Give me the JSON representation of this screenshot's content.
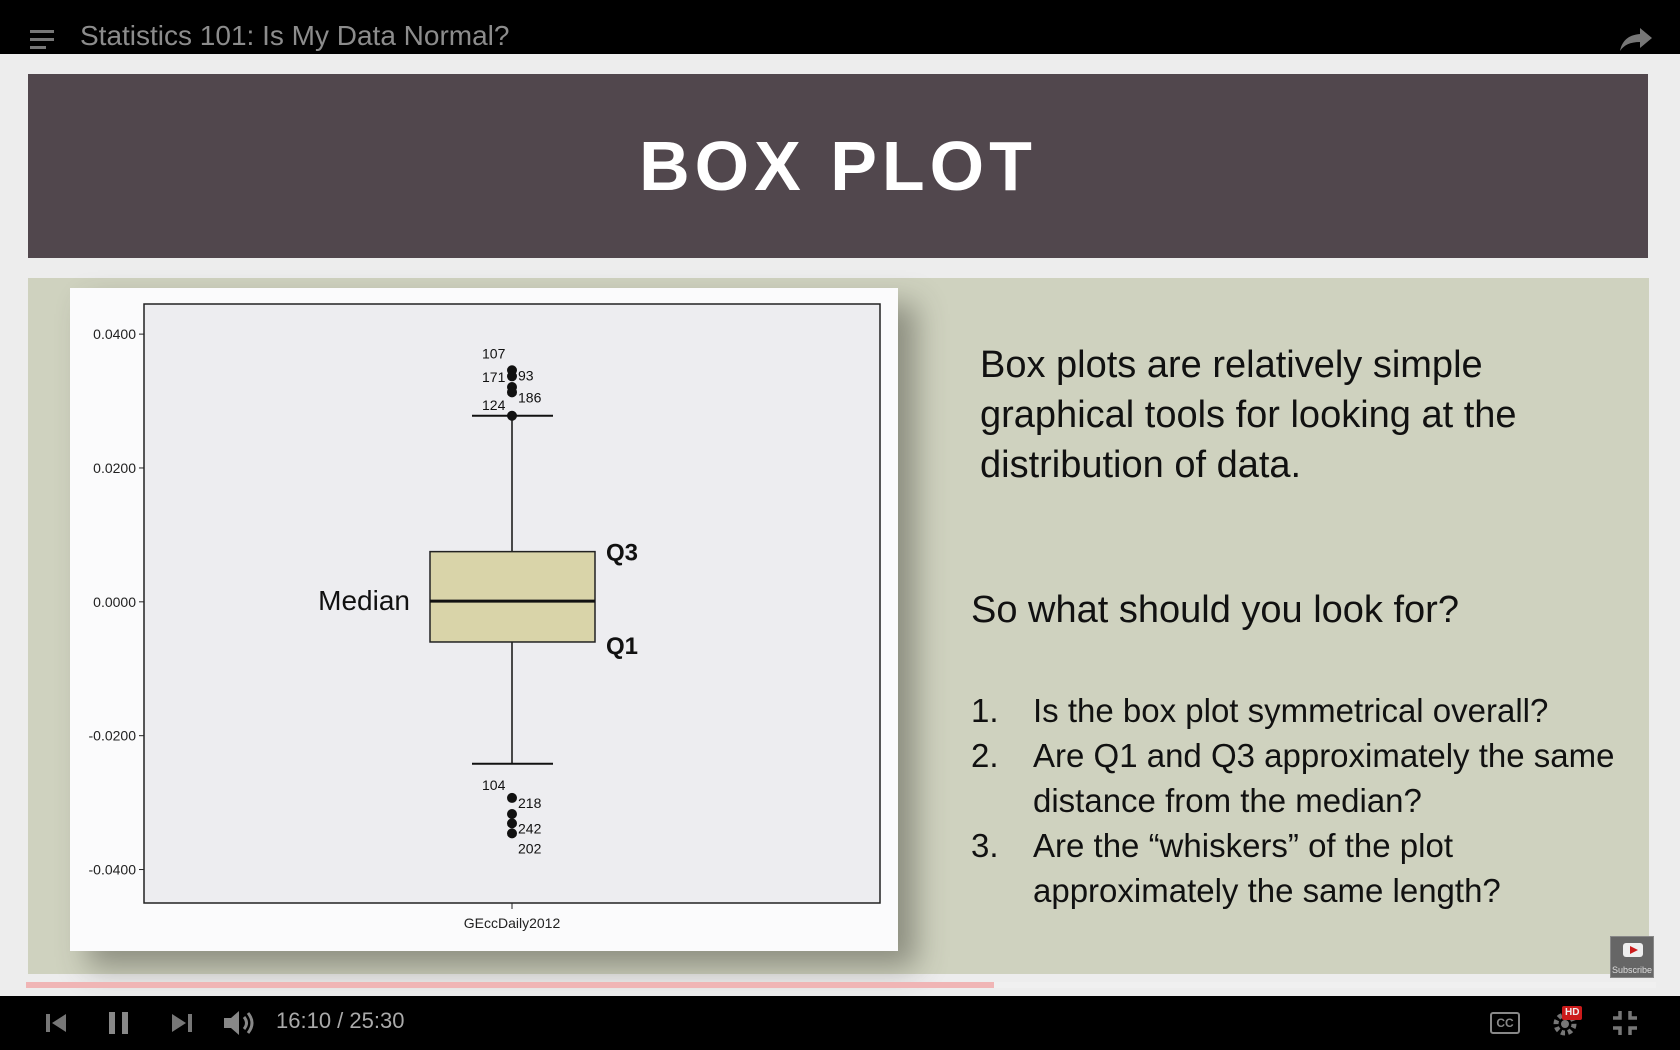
{
  "player": {
    "video_title": "Statistics 101: Is My Data Normal?",
    "time_current": "16:10",
    "time_total": "25:30",
    "time_text": "16:10 / 25:30",
    "progress_fraction": 0.594,
    "subscribe_label": "Subscribe",
    "cc_label": "CC",
    "hd_badge": "HD",
    "accent_color": "#cc1b1b"
  },
  "slide": {
    "title": "BOX PLOT",
    "intro": "Box plots are relatively simple graphical tools for looking at the distribution of data.",
    "question": "So what should you look for?",
    "items": [
      {
        "num": "1.",
        "text": "Is the box plot symmetrical overall?"
      },
      {
        "num": "2.",
        "text": "Are Q1 and Q3 approximately the same distance from the median?"
      },
      {
        "num": "3.",
        "text": "Are the “whiskers” of the plot approximately the same length?"
      }
    ],
    "colors": {
      "title_band": "#51474d",
      "content_bg": "#cfd2bf",
      "box_fill": "#d9d4a9"
    }
  },
  "chart_data": {
    "type": "boxplot",
    "xlabel": "GEccDaily2012",
    "ylim": [
      -0.045,
      0.0445
    ],
    "yticks": [
      "0.0400",
      "0.0200",
      "0.0000",
      "-0.0200",
      "-0.0400"
    ],
    "ytick_values": [
      0.04,
      0.02,
      0.0,
      -0.02,
      -0.04
    ],
    "box": {
      "q1": -0.006,
      "median": 0.0001,
      "q3": 0.0075,
      "whisker_low": -0.0242,
      "whisker_high": 0.0278
    },
    "outliers": [
      {
        "label": "107",
        "value": 0.0346
      },
      {
        "label": "93",
        "value": 0.0337
      },
      {
        "label": "171",
        "value": 0.0321
      },
      {
        "label": "186",
        "value": 0.0313
      },
      {
        "label": "124",
        "value": 0.0278
      },
      {
        "label": "104",
        "value": -0.0293
      },
      {
        "label": "218",
        "value": -0.0317
      },
      {
        "label": "242",
        "value": -0.0331
      },
      {
        "label": "202",
        "value": -0.0346
      }
    ],
    "annotations": {
      "median": "Median",
      "q3": "Q3",
      "q1": "Q1"
    }
  }
}
